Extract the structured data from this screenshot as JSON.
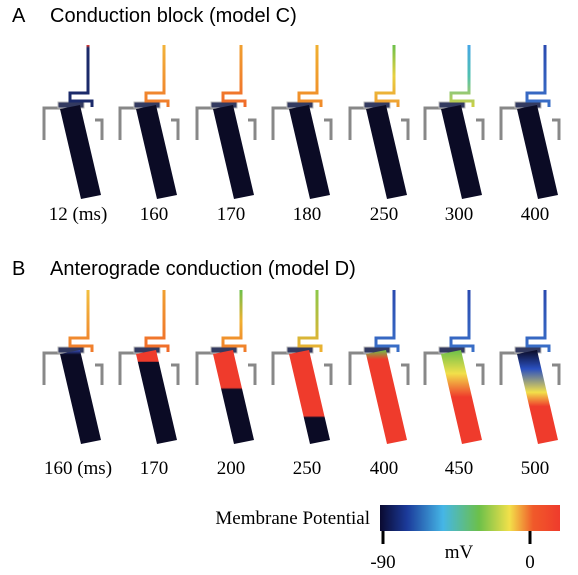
{
  "panels": [
    {
      "letter": "A",
      "title": "Conduction block (model C)",
      "frames": [
        "12 (ms)",
        "160",
        "170",
        "180",
        "250",
        "300",
        "400"
      ]
    },
    {
      "letter": "B",
      "title": "Anterograde conduction (model D)",
      "frames": [
        "160 (ms)",
        "170",
        "200",
        "250",
        "400",
        "450",
        "500"
      ]
    }
  ],
  "colorbar": {
    "label": "Membrane Potential",
    "min_label": "-90",
    "max_label": "0",
    "unit": "mV"
  }
}
